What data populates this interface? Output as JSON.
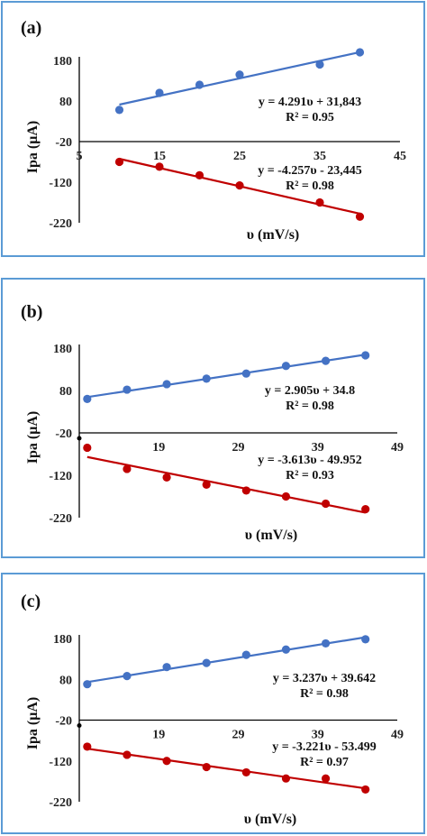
{
  "colors": {
    "blue": "#4472c4",
    "red": "#c00000",
    "frame": "#5b9bd5",
    "axis": "#000000"
  },
  "chart_data": [
    {
      "type": "scatter",
      "panel_label": "(a)",
      "xlabel": "υ (mV/s)",
      "ylabel": "Ipa (μA)",
      "xlim": [
        5,
        45
      ],
      "ylim": [
        -220,
        180
      ],
      "xticks": [
        "5",
        "15",
        "25",
        "35",
        "45"
      ],
      "xtick_values": [
        5,
        15,
        25,
        35,
        45
      ],
      "yticks": [
        "180",
        "80",
        "-20",
        "-120",
        "-220"
      ],
      "ytick_values": [
        180,
        80,
        -20,
        -120,
        -220
      ],
      "grid": false,
      "series": [
        {
          "color": "blue",
          "x": [
            10,
            15,
            20,
            25,
            35,
            40
          ],
          "y": [
            58,
            100,
            120,
            145,
            170,
            200
          ],
          "trendline": {
            "slope": 4.291,
            "intercept": 31.843
          },
          "equation": "y = 4.291υ + 31,843",
          "r2": "R² = 0.95"
        },
        {
          "color": "red",
          "x": [
            10,
            15,
            20,
            25,
            35,
            40
          ],
          "y": [
            -70,
            -82,
            -103,
            -128,
            -170,
            -205
          ],
          "trendline": {
            "slope": -4.257,
            "intercept": -23.445
          },
          "equation": "y = -4.257υ - 23,445",
          "r2": "R² = 0.98"
        }
      ]
    },
    {
      "type": "scatter",
      "panel_label": "(b)",
      "xlabel": "υ (mV/s)",
      "ylabel": "Ipa (μA)",
      "xlim": [
        9,
        49
      ],
      "ylim": [
        -220,
        180
      ],
      "xticks": [
        "19",
        "29",
        "39",
        "49"
      ],
      "xtick_values": [
        19,
        29,
        39,
        49
      ],
      "yticks": [
        "180",
        "80",
        "-20",
        "-120",
        "-220"
      ],
      "ytick_values": [
        180,
        80,
        -20,
        -120,
        -220
      ],
      "grid": false,
      "series": [
        {
          "color": "blue",
          "x": [
            10,
            15,
            20,
            25,
            30,
            35,
            40,
            45
          ],
          "y": [
            60,
            82,
            95,
            108,
            120,
            138,
            150,
            163
          ],
          "trendline": {
            "slope": 2.905,
            "intercept": 34.8
          },
          "equation": "y = 2.905υ + 34.8",
          "r2": "R² = 0.98"
        },
        {
          "color": "red",
          "x": [
            10,
            15,
            20,
            25,
            30,
            35,
            40,
            45
          ],
          "y": [
            -55,
            -105,
            -125,
            -142,
            -156,
            -170,
            -187,
            -200
          ],
          "trendline": {
            "slope": -3.613,
            "intercept": -49.952
          },
          "equation": "y = -3.613υ - 49.952",
          "r2": "R² = 0.93"
        }
      ]
    },
    {
      "type": "scatter",
      "panel_label": "(c)",
      "xlabel": "υ (mV/s)",
      "ylabel": "Ipa (μA)",
      "xlim": [
        9,
        49
      ],
      "ylim": [
        -220,
        180
      ],
      "xticks": [
        "19",
        "29",
        "39",
        "49"
      ],
      "xtick_values": [
        19,
        29,
        39,
        49
      ],
      "yticks": [
        "180",
        "80",
        "-20",
        "-120",
        "-220"
      ],
      "ytick_values": [
        180,
        80,
        -20,
        -120,
        -220
      ],
      "grid": false,
      "series": [
        {
          "color": "blue",
          "x": [
            10,
            15,
            20,
            25,
            30,
            35,
            40,
            45
          ],
          "y": [
            68,
            88,
            110,
            120,
            140,
            153,
            168,
            178
          ],
          "trendline": {
            "slope": 3.237,
            "intercept": 39.642
          },
          "equation": "y = 3.237υ + 39.642",
          "r2": "R² = 0.98"
        },
        {
          "color": "red",
          "x": [
            10,
            15,
            20,
            25,
            30,
            35,
            40,
            45
          ],
          "y": [
            -85,
            -105,
            -120,
            -135,
            -148,
            -163,
            -163,
            -190
          ],
          "trendline": {
            "slope": -3.221,
            "intercept": -53.499
          },
          "equation": "y = -3.221υ - 53.499",
          "r2": "R² = 0.97"
        }
      ]
    }
  ]
}
